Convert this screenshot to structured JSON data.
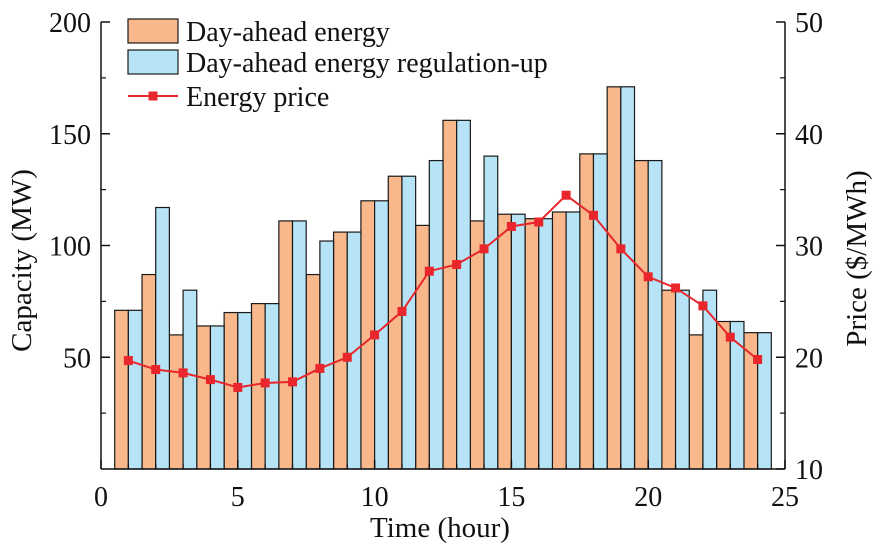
{
  "chart_data": {
    "type": "bar",
    "x": [
      1,
      2,
      3,
      4,
      5,
      6,
      7,
      8,
      9,
      10,
      11,
      12,
      13,
      14,
      15,
      16,
      17,
      18,
      19,
      20,
      21,
      22,
      23,
      24
    ],
    "xlabel": "Time (hour)",
    "ylabel": "Capacity (MW)",
    "y2label": "Price ($/MWh)",
    "xlim": [
      0,
      25
    ],
    "ylim": [
      0,
      200
    ],
    "y2lim": [
      10,
      50
    ],
    "xticks": [
      "0",
      "5",
      "10",
      "15",
      "20",
      "25"
    ],
    "yticks": [
      "50",
      "100",
      "150",
      "200"
    ],
    "y2ticks": [
      "10",
      "20",
      "30",
      "40",
      "50"
    ],
    "grid": false,
    "legend_position": "top-left",
    "series": [
      {
        "name": "Day-ahead energy",
        "type": "bar",
        "axis": "left",
        "color": "#f8b88b",
        "values": [
          71,
          87,
          60,
          64,
          70,
          74,
          111,
          87,
          106,
          120,
          131,
          109,
          156,
          111,
          114,
          112,
          115,
          141,
          171,
          138,
          80,
          60,
          66,
          61
        ]
      },
      {
        "name": "Day-ahead energy regulation-up",
        "type": "bar",
        "axis": "left",
        "color": "#b6e3f5",
        "values": [
          71,
          117,
          80,
          64,
          70,
          74,
          111,
          102,
          106,
          120,
          131,
          138,
          156,
          140,
          114,
          112,
          115,
          141,
          171,
          138,
          80,
          80,
          66,
          61
        ]
      },
      {
        "name": "Energy price",
        "type": "line",
        "axis": "right",
        "color": "#e8262b",
        "marker": "square",
        "values": [
          19.7,
          18.9,
          18.6,
          18.0,
          17.3,
          17.7,
          17.8,
          19.0,
          20.0,
          22.0,
          24.1,
          27.7,
          28.3,
          29.7,
          31.7,
          32.1,
          34.5,
          32.7,
          29.7,
          27.2,
          26.2,
          24.6,
          21.8,
          19.8
        ]
      }
    ]
  },
  "colors": {
    "axis": "#111111",
    "bar_edge": "#1a1a1a"
  }
}
